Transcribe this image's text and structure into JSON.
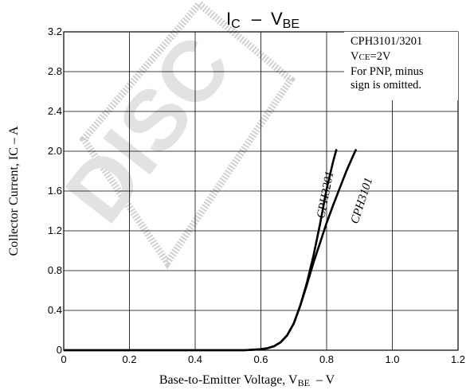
{
  "chart_data": {
    "type": "line",
    "title": {
      "main": "I",
      "sub1": "C",
      "sep": "–",
      "main2": "V",
      "sub2": "BE"
    },
    "xlabel": {
      "text": "Base-to-Emitter Voltage, V",
      "sub": "BE",
      "unit": "–  V"
    },
    "ylabel": "Collector Current, IC  –  A",
    "xlim": [
      0,
      1.2
    ],
    "ylim": [
      0,
      3.2
    ],
    "xticks": [
      "0",
      "0.2",
      "0.4",
      "0.6",
      "0.8",
      "1.0",
      "1.2"
    ],
    "yticks": [
      "0",
      "0.4",
      "0.8",
      "1.2",
      "1.6",
      "2.0",
      "2.4",
      "2.8",
      "3.2"
    ],
    "grid": true,
    "conditions": {
      "line1": "CPH3101/3201",
      "line2_main": "V",
      "line2_sub": "CE",
      "line2_rest": "=2V",
      "line3": "For PNP, minus",
      "line4": "sign is omitted."
    },
    "watermark": "DISC",
    "series": [
      {
        "name": "CPH3201",
        "x": [
          0,
          0.55,
          0.6,
          0.62,
          0.64,
          0.66,
          0.68,
          0.7,
          0.72,
          0.74,
          0.76,
          0.78,
          0.8,
          0.82,
          0.83
        ],
        "y": [
          0,
          0,
          0.01,
          0.02,
          0.04,
          0.08,
          0.15,
          0.27,
          0.45,
          0.68,
          0.95,
          1.27,
          1.62,
          1.9,
          2.02
        ]
      },
      {
        "name": "CPH3101",
        "x": [
          0,
          0.55,
          0.6,
          0.62,
          0.64,
          0.66,
          0.68,
          0.7,
          0.72,
          0.74,
          0.76,
          0.78,
          0.8,
          0.82,
          0.84,
          0.86,
          0.88,
          0.89
        ],
        "y": [
          0,
          0,
          0.01,
          0.02,
          0.04,
          0.08,
          0.15,
          0.27,
          0.45,
          0.66,
          0.88,
          1.08,
          1.28,
          1.46,
          1.63,
          1.8,
          1.95,
          2.02
        ]
      }
    ]
  }
}
